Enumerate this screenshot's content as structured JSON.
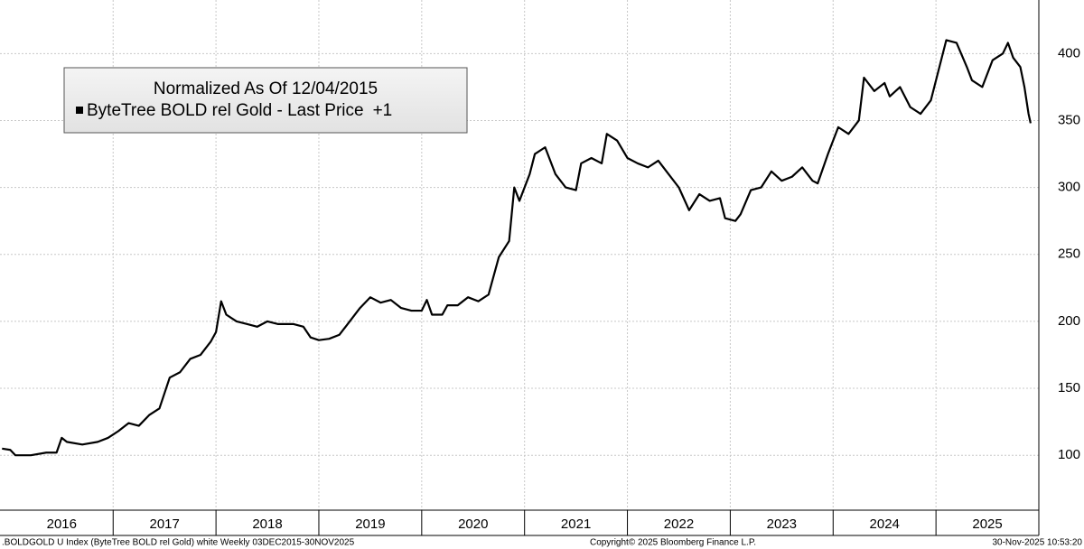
{
  "chart_data": {
    "type": "line",
    "legend_title": "Normalized As Of 12/04/2015",
    "legend_suffix": "+1",
    "footer_left": ".BOLDGOLD U Index (ByteTree BOLD rel Gold) white Weekly 03DEC2015-30NOV2025",
    "footer_center": "Copyright© 2025 Bloomberg Finance L.P.",
    "footer_right": "30-Nov-2025 10:53:20",
    "x": [
      2015.92,
      2016.0,
      2016.05,
      2016.2,
      2016.35,
      2016.45,
      2016.5,
      2016.55,
      2016.7,
      2016.85,
      2016.95,
      2017.05,
      2017.15,
      2017.25,
      2017.35,
      2017.45,
      2017.55,
      2017.65,
      2017.75,
      2017.85,
      2017.95,
      2018.0,
      2018.05,
      2018.1,
      2018.2,
      2018.3,
      2018.4,
      2018.5,
      2018.6,
      2018.75,
      2018.85,
      2018.92,
      2019.0,
      2019.1,
      2019.2,
      2019.3,
      2019.4,
      2019.5,
      2019.6,
      2019.7,
      2019.8,
      2019.9,
      2020.0,
      2020.05,
      2020.1,
      2020.2,
      2020.25,
      2020.35,
      2020.45,
      2020.55,
      2020.65,
      2020.75,
      2020.85,
      2020.9,
      2020.95,
      2021.05,
      2021.1,
      2021.2,
      2021.3,
      2021.4,
      2021.5,
      2021.55,
      2021.65,
      2021.75,
      2021.8,
      2021.9,
      2022.0,
      2022.1,
      2022.2,
      2022.3,
      2022.4,
      2022.5,
      2022.6,
      2022.7,
      2022.8,
      2022.9,
      2022.95,
      2023.05,
      2023.1,
      2023.2,
      2023.3,
      2023.4,
      2023.5,
      2023.6,
      2023.7,
      2023.8,
      2023.85,
      2023.95,
      2024.05,
      2024.15,
      2024.25,
      2024.3,
      2024.4,
      2024.5,
      2024.55,
      2024.65,
      2024.75,
      2024.85,
      2024.95,
      2025.05,
      2025.1,
      2025.2,
      2025.3,
      2025.35,
      2025.45,
      2025.55,
      2025.65,
      2025.7,
      2025.75,
      2025.82,
      2025.86,
      2025.9,
      2025.92
    ],
    "series": [
      {
        "name": "ByteTree BOLD rel Gold - Last Price",
        "color": "#000000",
        "values": [
          105,
          104,
          100,
          100,
          102,
          102,
          113,
          110,
          108,
          110,
          113,
          118,
          124,
          122,
          130,
          135,
          158,
          162,
          172,
          175,
          185,
          192,
          215,
          205,
          200,
          198,
          196,
          200,
          198,
          198,
          196,
          188,
          186,
          187,
          190,
          200,
          210,
          218,
          214,
          216,
          210,
          208,
          208,
          216,
          205,
          205,
          212,
          212,
          218,
          215,
          220,
          248,
          260,
          300,
          290,
          310,
          325,
          330,
          310,
          300,
          298,
          318,
          322,
          318,
          340,
          335,
          322,
          318,
          315,
          320,
          310,
          300,
          283,
          295,
          290,
          292,
          277,
          275,
          280,
          298,
          300,
          312,
          305,
          308,
          315,
          305,
          303,
          325,
          345,
          340,
          350,
          382,
          372,
          378,
          368,
          375,
          360,
          355,
          365,
          395,
          410,
          408,
          390,
          380,
          375,
          395,
          400,
          408,
          397,
          390,
          375,
          355,
          348
        ]
      }
    ],
    "xlim": [
      2015.9,
      2026
    ],
    "xticks": [
      {
        "value": 2016.5,
        "label": "2016"
      },
      {
        "value": 2017.5,
        "label": "2017"
      },
      {
        "value": 2018.5,
        "label": "2018"
      },
      {
        "value": 2019.5,
        "label": "2019"
      },
      {
        "value": 2020.5,
        "label": "2020"
      },
      {
        "value": 2021.5,
        "label": "2021"
      },
      {
        "value": 2022.5,
        "label": "2022"
      },
      {
        "value": 2023.5,
        "label": "2023"
      },
      {
        "value": 2024.5,
        "label": "2024"
      },
      {
        "value": 2025.5,
        "label": "2025"
      }
    ],
    "xgrid": [
      2017,
      2018,
      2019,
      2020,
      2021,
      2022,
      2023,
      2024,
      2025,
      2026
    ],
    "ylim": [
      59,
      440
    ],
    "yticks": [
      100,
      150,
      200,
      250,
      300,
      350,
      400
    ],
    "grid": true
  }
}
